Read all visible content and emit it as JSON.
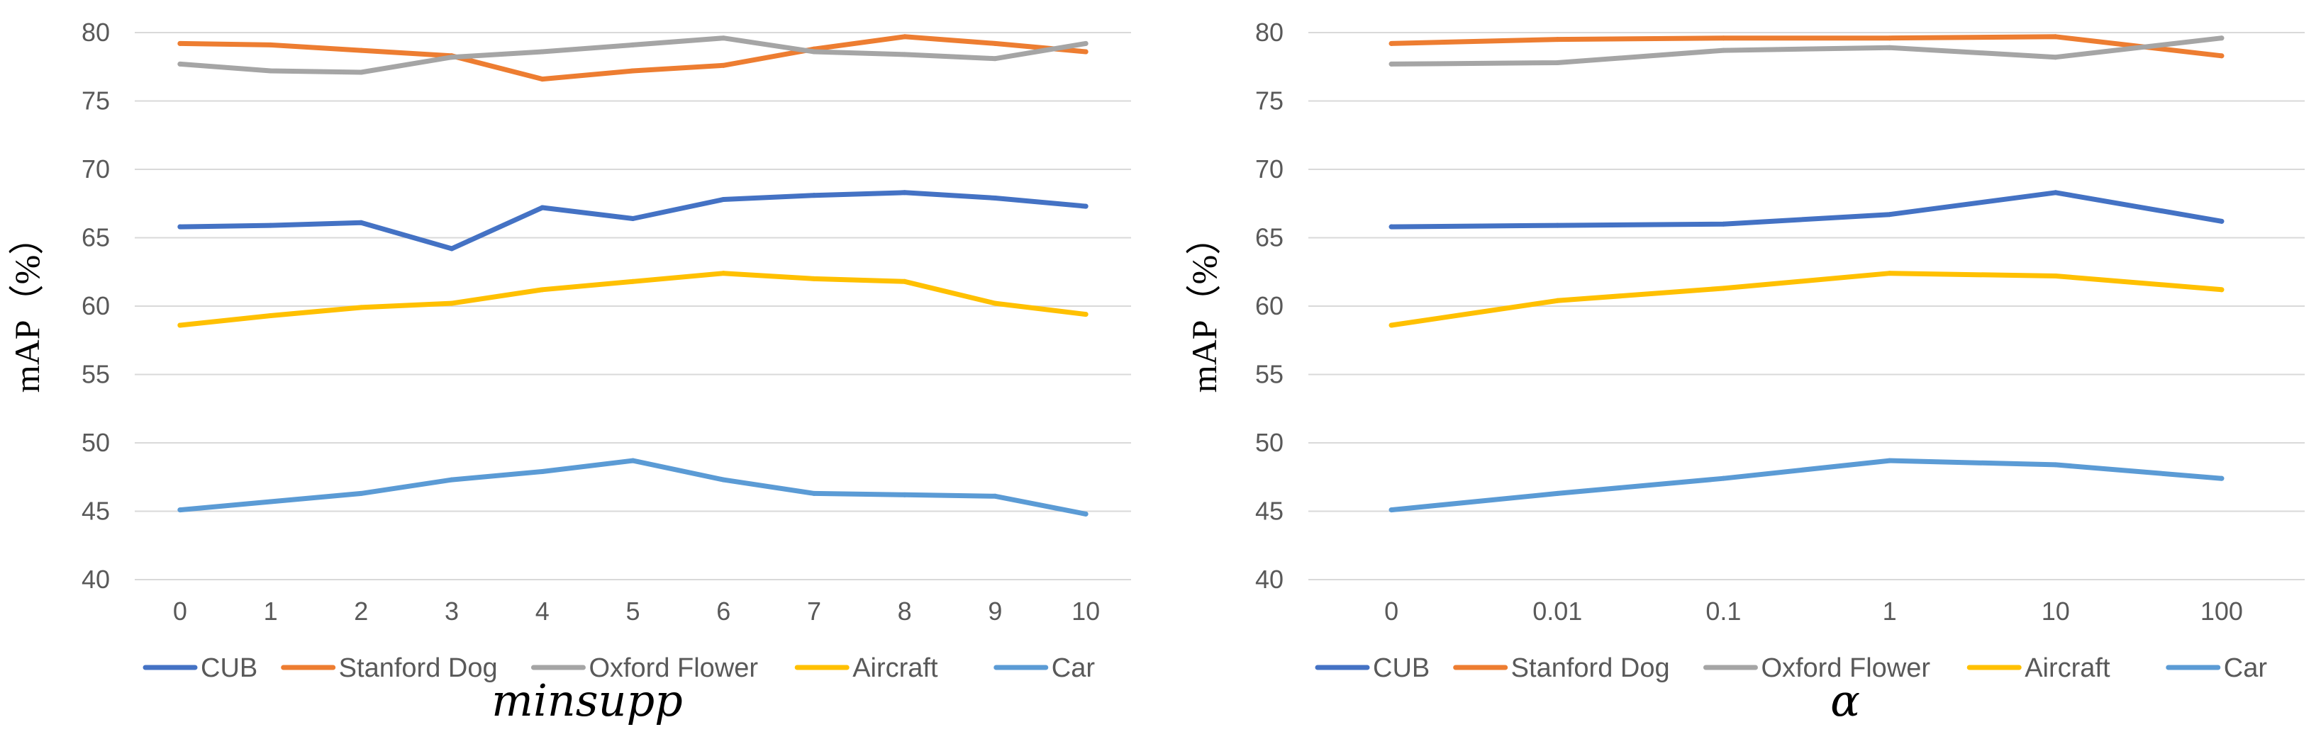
{
  "chart_data": [
    {
      "type": "line",
      "xlabel": "minsupp",
      "ylabel": "mAP（%）",
      "ylim": [
        40,
        80
      ],
      "yticks": [
        40,
        45,
        50,
        55,
        60,
        65,
        70,
        75,
        80
      ],
      "grid": true,
      "legend_position": "bottom",
      "categories": [
        "0",
        "1",
        "2",
        "3",
        "4",
        "5",
        "6",
        "7",
        "8",
        "9",
        "10"
      ],
      "series": [
        {
          "name": "CUB",
          "color": "#4472c4",
          "values": [
            65.8,
            65.9,
            66.1,
            64.2,
            67.2,
            66.4,
            67.8,
            68.1,
            68.3,
            67.9,
            67.3
          ]
        },
        {
          "name": "Stanford Dog",
          "color": "#ed7d31",
          "values": [
            79.2,
            79.1,
            78.7,
            78.3,
            76.6,
            77.2,
            77.6,
            78.8,
            79.7,
            79.2,
            78.6
          ]
        },
        {
          "name": "Oxford Flower",
          "color": "#a5a5a5",
          "values": [
            77.7,
            77.2,
            77.1,
            78.2,
            78.6,
            79.1,
            79.6,
            78.6,
            78.4,
            78.1,
            79.2
          ]
        },
        {
          "name": "Aircraft",
          "color": "#ffc000",
          "values": [
            58.6,
            59.3,
            59.9,
            60.2,
            61.2,
            61.8,
            62.4,
            62.0,
            61.8,
            60.2,
            59.4
          ]
        },
        {
          "name": "Car",
          "color": "#5b9bd5",
          "values": [
            45.1,
            45.7,
            46.3,
            47.3,
            47.9,
            48.7,
            47.3,
            46.3,
            46.2,
            46.1,
            44.8
          ]
        }
      ]
    },
    {
      "type": "line",
      "xlabel": "α",
      "ylabel": "mAP（%）",
      "ylim": [
        40,
        80
      ],
      "yticks": [
        40,
        45,
        50,
        55,
        60,
        65,
        70,
        75,
        80
      ],
      "grid": true,
      "legend_position": "bottom",
      "categories": [
        "0",
        "0.01",
        "0.1",
        "1",
        "10",
        "100"
      ],
      "series": [
        {
          "name": "CUB",
          "color": "#4472c4",
          "values": [
            65.8,
            65.9,
            66.0,
            66.7,
            68.3,
            66.2
          ]
        },
        {
          "name": "Stanford Dog",
          "color": "#ed7d31",
          "values": [
            79.2,
            79.5,
            79.6,
            79.6,
            79.7,
            78.3
          ]
        },
        {
          "name": "Oxford Flower",
          "color": "#a5a5a5",
          "values": [
            77.7,
            77.8,
            78.7,
            78.9,
            78.2,
            79.6
          ]
        },
        {
          "name": "Aircraft",
          "color": "#ffc000",
          "values": [
            58.6,
            60.4,
            61.3,
            62.4,
            62.2,
            61.2
          ]
        },
        {
          "name": "Car",
          "color": "#5b9bd5",
          "values": [
            45.1,
            46.3,
            47.4,
            48.7,
            48.4,
            47.4
          ]
        }
      ]
    }
  ]
}
